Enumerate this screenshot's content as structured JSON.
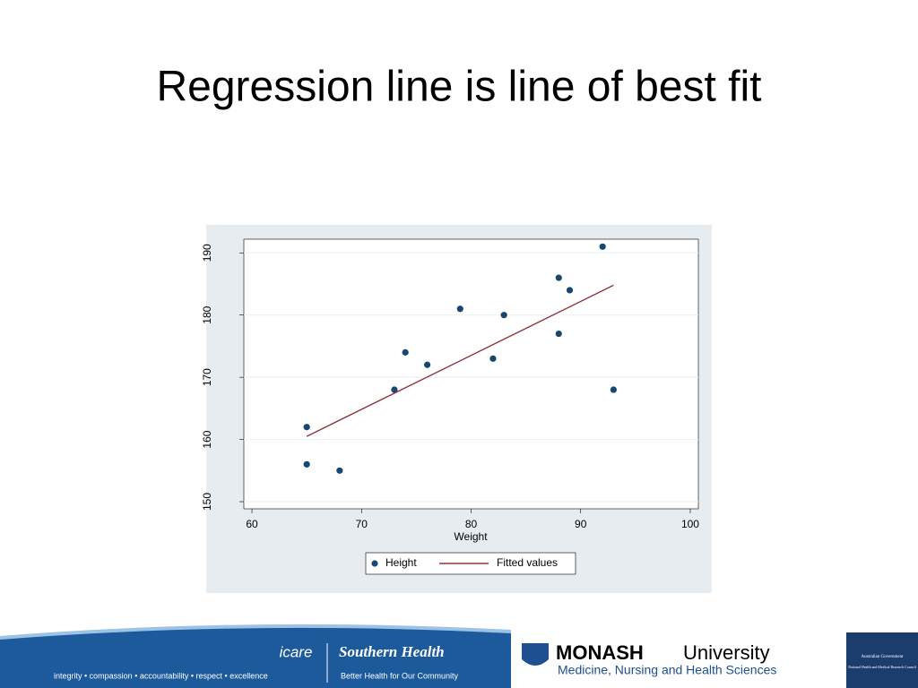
{
  "chart_data": {
    "type": "scatter",
    "title": "Regression line is line of best fit",
    "x_label": "Weight",
    "series": [
      {
        "name": "Height",
        "type": "scatter",
        "color": "#1a476f",
        "x": [
          65,
          65,
          68,
          73,
          74,
          76,
          79,
          82,
          83,
          88,
          88,
          89,
          92,
          93
        ],
        "values": [
          162,
          156,
          155,
          168,
          174,
          172,
          181,
          173,
          180,
          186,
          177,
          184,
          191,
          168
        ]
      },
      {
        "name": "Fitted values",
        "type": "line",
        "color": "#90353b",
        "x": [
          65,
          93
        ],
        "values": [
          160.5,
          184.8
        ]
      }
    ],
    "xlim": [
      59.26,
      100.74
    ],
    "xticks": [
      60,
      70,
      80,
      90,
      100
    ],
    "ylim": [
      148.85,
      192.2
    ],
    "yticks": [
      150,
      160,
      170,
      180,
      190
    ],
    "grid": true,
    "legend": "bottom"
  },
  "footer": {
    "icare": "icare",
    "southern_health": "Southern Health",
    "southern_tagline": "Better Health for Our Community",
    "values": "integrity • compassion • accountability • respect • excellence",
    "monash_name": "MONASH",
    "monash_university": "University",
    "monash_faculty": "Medicine, Nursing and Health Sciences",
    "gov": "Australian Government",
    "nhmrc": "National Health and Medical Research Council"
  }
}
